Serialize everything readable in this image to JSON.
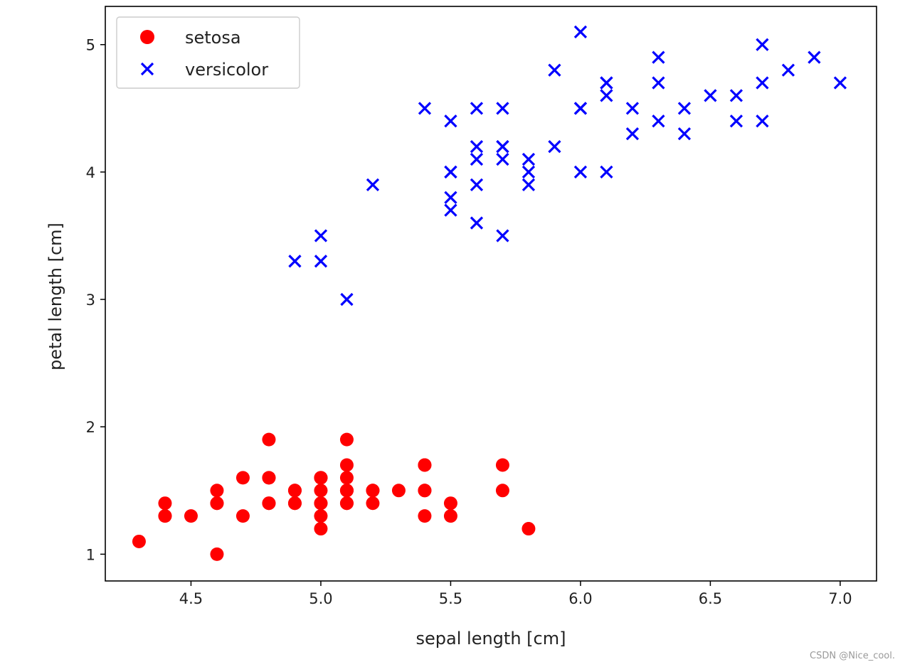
{
  "chart_data": {
    "type": "scatter",
    "xlabel": "sepal length [cm]",
    "ylabel": "petal length [cm]",
    "xlim": [
      4.17,
      7.14
    ],
    "ylim": [
      0.79,
      5.3
    ],
    "xticks": [
      4.5,
      5.0,
      5.5,
      6.0,
      6.5,
      7.0
    ],
    "xtick_labels": [
      "4.5",
      "5.0",
      "5.5",
      "6.0",
      "6.5",
      "7.0"
    ],
    "yticks": [
      1,
      2,
      3,
      4,
      5
    ],
    "ytick_labels": [
      "1",
      "2",
      "3",
      "4",
      "5"
    ],
    "grid": false,
    "legend_position": "top-left",
    "series": [
      {
        "name": "setosa",
        "marker": "circle",
        "color": "#ff0000",
        "points": [
          [
            5.1,
            1.4
          ],
          [
            4.9,
            1.4
          ],
          [
            4.7,
            1.3
          ],
          [
            4.6,
            1.5
          ],
          [
            5.0,
            1.4
          ],
          [
            5.4,
            1.7
          ],
          [
            4.6,
            1.4
          ],
          [
            5.0,
            1.5
          ],
          [
            4.4,
            1.4
          ],
          [
            4.9,
            1.5
          ],
          [
            5.4,
            1.5
          ],
          [
            4.8,
            1.6
          ],
          [
            4.8,
            1.4
          ],
          [
            4.3,
            1.1
          ],
          [
            5.8,
            1.2
          ],
          [
            5.7,
            1.5
          ],
          [
            5.4,
            1.3
          ],
          [
            5.1,
            1.4
          ],
          [
            5.7,
            1.7
          ],
          [
            5.1,
            1.5
          ],
          [
            5.4,
            1.7
          ],
          [
            5.1,
            1.5
          ],
          [
            4.6,
            1.0
          ],
          [
            5.1,
            1.7
          ],
          [
            4.8,
            1.9
          ],
          [
            5.0,
            1.6
          ],
          [
            5.0,
            1.6
          ],
          [
            5.2,
            1.5
          ],
          [
            5.2,
            1.4
          ],
          [
            4.7,
            1.6
          ],
          [
            4.8,
            1.6
          ],
          [
            5.4,
            1.5
          ],
          [
            5.2,
            1.5
          ],
          [
            5.5,
            1.4
          ],
          [
            4.9,
            1.5
          ],
          [
            5.0,
            1.2
          ],
          [
            5.5,
            1.3
          ],
          [
            4.9,
            1.4
          ],
          [
            4.4,
            1.3
          ],
          [
            5.1,
            1.5
          ],
          [
            5.0,
            1.3
          ],
          [
            4.5,
            1.3
          ],
          [
            4.4,
            1.3
          ],
          [
            5.0,
            1.6
          ],
          [
            5.1,
            1.9
          ],
          [
            4.8,
            1.4
          ],
          [
            5.1,
            1.6
          ],
          [
            4.6,
            1.4
          ],
          [
            5.3,
            1.5
          ],
          [
            5.0,
            1.4
          ]
        ]
      },
      {
        "name": "versicolor",
        "marker": "x",
        "color": "#0000ff",
        "points": [
          [
            7.0,
            4.7
          ],
          [
            6.4,
            4.5
          ],
          [
            6.9,
            4.9
          ],
          [
            5.5,
            4.0
          ],
          [
            6.5,
            4.6
          ],
          [
            5.7,
            4.5
          ],
          [
            6.3,
            4.7
          ],
          [
            4.9,
            3.3
          ],
          [
            6.6,
            4.6
          ],
          [
            5.2,
            3.9
          ],
          [
            5.0,
            3.5
          ],
          [
            5.9,
            4.2
          ],
          [
            6.0,
            4.0
          ],
          [
            6.1,
            4.7
          ],
          [
            5.6,
            3.6
          ],
          [
            6.7,
            4.4
          ],
          [
            5.6,
            4.5
          ],
          [
            5.8,
            4.1
          ],
          [
            6.2,
            4.5
          ],
          [
            5.6,
            3.9
          ],
          [
            5.9,
            4.8
          ],
          [
            6.1,
            4.0
          ],
          [
            6.3,
            4.9
          ],
          [
            6.1,
            4.7
          ],
          [
            6.4,
            4.3
          ],
          [
            6.6,
            4.4
          ],
          [
            6.8,
            4.8
          ],
          [
            6.7,
            5.0
          ],
          [
            6.0,
            4.5
          ],
          [
            5.7,
            3.5
          ],
          [
            5.5,
            3.8
          ],
          [
            5.5,
            3.7
          ],
          [
            5.8,
            3.9
          ],
          [
            6.0,
            5.1
          ],
          [
            5.4,
            4.5
          ],
          [
            6.0,
            4.5
          ],
          [
            6.7,
            4.7
          ],
          [
            6.3,
            4.4
          ],
          [
            5.6,
            4.1
          ],
          [
            5.5,
            4.0
          ],
          [
            5.5,
            4.4
          ],
          [
            6.1,
            4.6
          ],
          [
            5.8,
            4.0
          ],
          [
            5.0,
            3.3
          ],
          [
            5.6,
            4.2
          ],
          [
            5.7,
            4.2
          ],
          [
            5.7,
            4.2
          ],
          [
            6.2,
            4.3
          ],
          [
            5.1,
            3.0
          ],
          [
            5.7,
            4.1
          ]
        ]
      }
    ]
  },
  "watermark": "CSDN @Nice_cool."
}
